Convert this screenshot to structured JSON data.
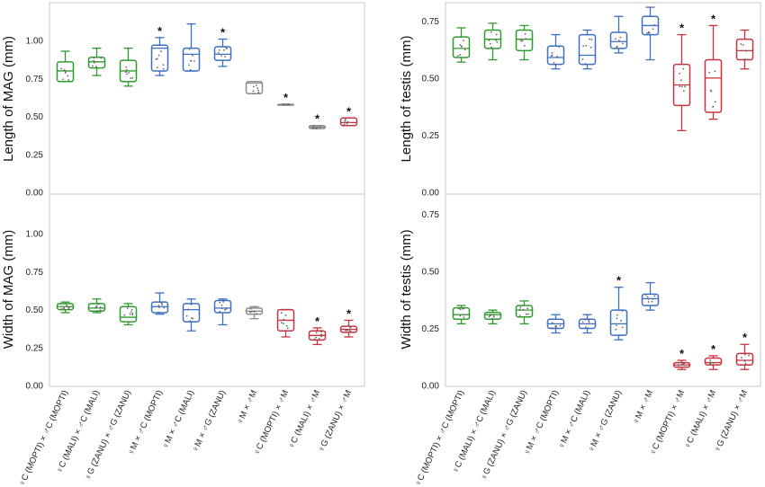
{
  "colors": {
    "green": "#2e9a2e",
    "blue": "#3a6fc4",
    "red": "#c8323c",
    "grey": "#8c8c8c"
  },
  "categories": [
    "♀C (MOPTI) × ♂C (MOPTI)",
    "♀C (MALI) × ♂C (MALI)",
    "♀G (ZANU) × ♂G (ZANU)",
    "♀M × ♂C (MOPTI)",
    "♀M × ♂C (MALI)",
    "♀M × ♂G (ZANU)",
    "♀M × ♂M",
    "♀C (MOPTI) × ♂M",
    "♀C (MALI) × ♂M",
    "♀G (ZANU) × ♂M"
  ],
  "chart_data": [
    {
      "type": "box",
      "ylabel": "Length of MAG (mm)",
      "ylim": [
        0,
        1.25
      ],
      "yticks": [
        "0.00",
        "0.25",
        "0.50",
        "0.75",
        "1.00"
      ],
      "boxes": [
        {
          "min": 0.73,
          "q1": 0.73,
          "median": 0.8,
          "q3": 0.86,
          "max": 0.93,
          "color": "green",
          "star": false
        },
        {
          "min": 0.77,
          "q1": 0.82,
          "median": 0.86,
          "q3": 0.89,
          "max": 0.95,
          "color": "green",
          "star": false
        },
        {
          "min": 0.7,
          "q1": 0.73,
          "median": 0.8,
          "q3": 0.87,
          "max": 0.95,
          "color": "green",
          "star": false
        },
        {
          "min": 0.77,
          "q1": 0.8,
          "median": 0.95,
          "q3": 0.97,
          "max": 1.02,
          "color": "blue",
          "star": true
        },
        {
          "min": 0.8,
          "q1": 0.8,
          "median": 0.91,
          "q3": 0.95,
          "max": 1.11,
          "color": "blue",
          "star": false
        },
        {
          "min": 0.83,
          "q1": 0.87,
          "median": 0.91,
          "q3": 0.96,
          "max": 1.01,
          "color": "blue",
          "star": true
        },
        {
          "min": 0.65,
          "q1": 0.65,
          "median": 0.72,
          "q3": 0.73,
          "max": 0.73,
          "color": "grey",
          "star": false
        },
        {
          "min": 0.58,
          "q1": 0.58,
          "median": 0.58,
          "q3": 0.58,
          "max": 0.58,
          "color": "grey",
          "star": true
        },
        {
          "min": 0.42,
          "q1": 0.42,
          "median": 0.43,
          "q3": 0.44,
          "max": 0.44,
          "color": "grey",
          "star": true
        },
        {
          "min": 0.44,
          "q1": 0.44,
          "median": 0.46,
          "q3": 0.49,
          "max": 0.49,
          "color": "red",
          "star": true
        }
      ]
    },
    {
      "type": "box",
      "ylabel": "Width of MAG (mm)",
      "ylim": [
        0,
        1.25
      ],
      "yticks": [
        "0.00",
        "0.25",
        "0.50",
        "0.75",
        "1.00"
      ],
      "boxes": [
        {
          "min": 0.48,
          "q1": 0.5,
          "median": 0.52,
          "q3": 0.54,
          "max": 0.55,
          "color": "green",
          "star": false
        },
        {
          "min": 0.48,
          "q1": 0.49,
          "median": 0.51,
          "q3": 0.54,
          "max": 0.57,
          "color": "green",
          "star": false
        },
        {
          "min": 0.4,
          "q1": 0.42,
          "median": 0.45,
          "q3": 0.52,
          "max": 0.54,
          "color": "green",
          "star": false
        },
        {
          "min": 0.47,
          "q1": 0.48,
          "median": 0.52,
          "q3": 0.55,
          "max": 0.61,
          "color": "blue",
          "star": false
        },
        {
          "min": 0.36,
          "q1": 0.42,
          "median": 0.5,
          "q3": 0.54,
          "max": 0.57,
          "color": "blue",
          "star": false
        },
        {
          "min": 0.4,
          "q1": 0.48,
          "median": 0.51,
          "q3": 0.56,
          "max": 0.57,
          "color": "blue",
          "star": false
        },
        {
          "min": 0.44,
          "q1": 0.47,
          "median": 0.49,
          "q3": 0.51,
          "max": 0.52,
          "color": "grey",
          "star": false
        },
        {
          "min": 0.32,
          "q1": 0.36,
          "median": 0.43,
          "q3": 0.5,
          "max": 0.5,
          "color": "red",
          "star": false
        },
        {
          "min": 0.27,
          "q1": 0.3,
          "median": 0.33,
          "q3": 0.36,
          "max": 0.38,
          "color": "red",
          "star": true
        },
        {
          "min": 0.32,
          "q1": 0.35,
          "median": 0.37,
          "q3": 0.39,
          "max": 0.43,
          "color": "red",
          "star": true
        }
      ]
    },
    {
      "type": "box",
      "ylabel": "Length of testis (mm)",
      "ylim": [
        0,
        0.83
      ],
      "yticks": [
        "0.00",
        "0.25",
        "0.50",
        "0.75"
      ],
      "boxes": [
        {
          "min": 0.57,
          "q1": 0.59,
          "median": 0.63,
          "q3": 0.68,
          "max": 0.72,
          "color": "green",
          "star": false
        },
        {
          "min": 0.58,
          "q1": 0.63,
          "median": 0.67,
          "q3": 0.71,
          "max": 0.74,
          "color": "green",
          "star": false
        },
        {
          "min": 0.58,
          "q1": 0.62,
          "median": 0.67,
          "q3": 0.71,
          "max": 0.73,
          "color": "green",
          "star": false
        },
        {
          "min": 0.54,
          "q1": 0.56,
          "median": 0.59,
          "q3": 0.64,
          "max": 0.69,
          "color": "blue",
          "star": false
        },
        {
          "min": 0.54,
          "q1": 0.56,
          "median": 0.6,
          "q3": 0.69,
          "max": 0.71,
          "color": "blue",
          "star": false
        },
        {
          "min": 0.61,
          "q1": 0.63,
          "median": 0.66,
          "q3": 0.7,
          "max": 0.77,
          "color": "blue",
          "star": false
        },
        {
          "min": 0.58,
          "q1": 0.69,
          "median": 0.73,
          "q3": 0.77,
          "max": 0.81,
          "color": "blue",
          "star": false
        },
        {
          "min": 0.27,
          "q1": 0.38,
          "median": 0.47,
          "q3": 0.56,
          "max": 0.69,
          "color": "red",
          "star": true
        },
        {
          "min": 0.32,
          "q1": 0.35,
          "median": 0.5,
          "q3": 0.58,
          "max": 0.73,
          "color": "red",
          "star": true
        },
        {
          "min": 0.54,
          "q1": 0.58,
          "median": 0.62,
          "q3": 0.67,
          "max": 0.71,
          "color": "red",
          "star": false
        }
      ]
    },
    {
      "type": "box",
      "ylabel": "Width of testis (mm)",
      "ylim": [
        0,
        0.83
      ],
      "yticks": [
        "0.00",
        "0.25",
        "0.50",
        "0.75"
      ],
      "boxes": [
        {
          "min": 0.27,
          "q1": 0.29,
          "median": 0.31,
          "q3": 0.34,
          "max": 0.35,
          "color": "green",
          "star": false
        },
        {
          "min": 0.27,
          "q1": 0.29,
          "median": 0.31,
          "q3": 0.32,
          "max": 0.33,
          "color": "green",
          "star": false
        },
        {
          "min": 0.27,
          "q1": 0.3,
          "median": 0.33,
          "q3": 0.35,
          "max": 0.37,
          "color": "green",
          "star": false
        },
        {
          "min": 0.23,
          "q1": 0.25,
          "median": 0.27,
          "q3": 0.29,
          "max": 0.31,
          "color": "blue",
          "star": false
        },
        {
          "min": 0.23,
          "q1": 0.25,
          "median": 0.27,
          "q3": 0.29,
          "max": 0.31,
          "color": "blue",
          "star": false
        },
        {
          "min": 0.2,
          "q1": 0.22,
          "median": 0.27,
          "q3": 0.33,
          "max": 0.43,
          "color": "blue",
          "star": true
        },
        {
          "min": 0.33,
          "q1": 0.35,
          "median": 0.38,
          "q3": 0.4,
          "max": 0.45,
          "color": "blue",
          "star": false
        },
        {
          "min": 0.07,
          "q1": 0.08,
          "median": 0.09,
          "q3": 0.1,
          "max": 0.11,
          "color": "red",
          "star": true
        },
        {
          "min": 0.07,
          "q1": 0.09,
          "median": 0.1,
          "q3": 0.12,
          "max": 0.13,
          "color": "red",
          "star": true
        },
        {
          "min": 0.07,
          "q1": 0.09,
          "median": 0.11,
          "q3": 0.14,
          "max": 0.18,
          "color": "red",
          "star": true
        }
      ]
    }
  ]
}
